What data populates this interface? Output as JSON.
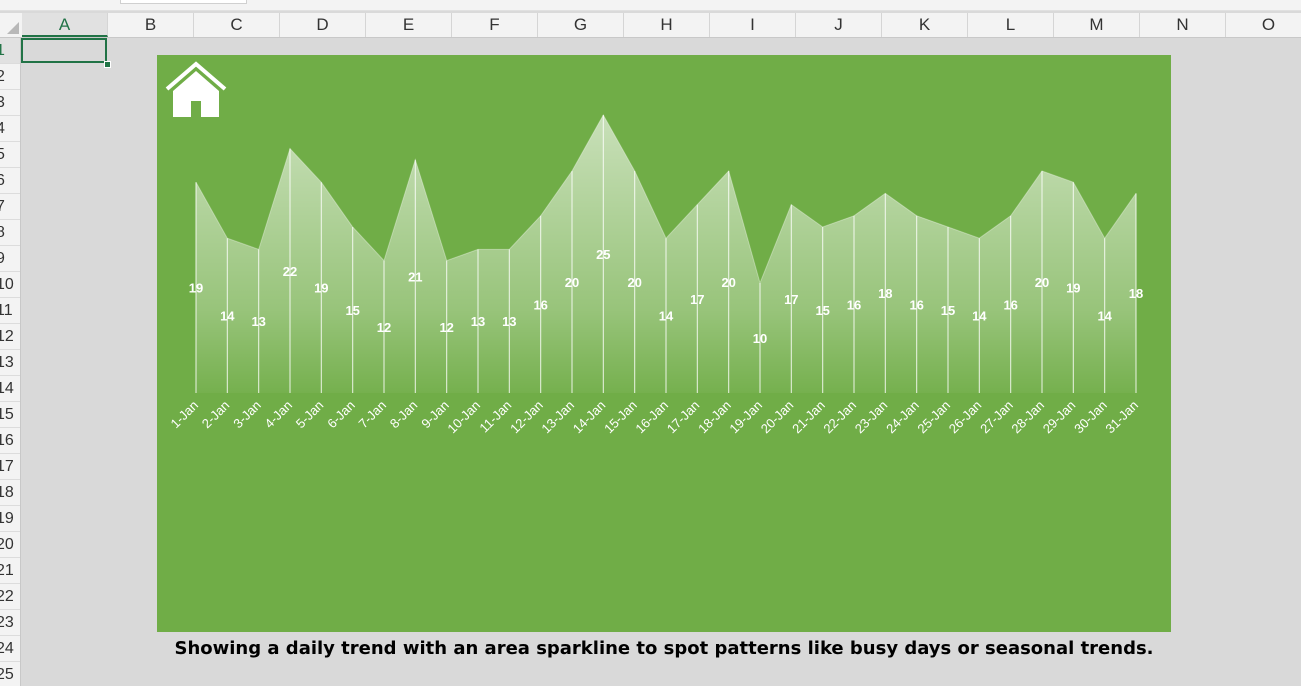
{
  "spreadsheet": {
    "columns": [
      "A",
      "B",
      "C",
      "D",
      "E",
      "F",
      "G",
      "H",
      "I",
      "J",
      "K",
      "L",
      "M",
      "N",
      "O"
    ],
    "rows": [
      "1",
      "2",
      "3",
      "4",
      "5",
      "6",
      "7",
      "8",
      "9",
      "10",
      "11",
      "12",
      "13",
      "14",
      "15",
      "16",
      "17",
      "18",
      "19",
      "20",
      "21",
      "22",
      "23",
      "24",
      "25"
    ],
    "selected_cell": "A1"
  },
  "dashboard": {
    "icon": "home-icon",
    "background_color": "#70ad47",
    "fill_color": "#ffffff",
    "caption": "Showing a daily trend with an area sparkline to spot patterns like busy days or seasonal trends."
  },
  "chart_data": {
    "type": "area",
    "categories": [
      "1-Jan",
      "2-Jan",
      "3-Jan",
      "4-Jan",
      "5-Jan",
      "6-Jan",
      "7-Jan",
      "8-Jan",
      "9-Jan",
      "10-Jan",
      "11-Jan",
      "12-Jan",
      "13-Jan",
      "14-Jan",
      "15-Jan",
      "16-Jan",
      "17-Jan",
      "18-Jan",
      "19-Jan",
      "20-Jan",
      "21-Jan",
      "22-Jan",
      "23-Jan",
      "24-Jan",
      "25-Jan",
      "26-Jan",
      "27-Jan",
      "28-Jan",
      "29-Jan",
      "30-Jan",
      "31-Jan"
    ],
    "values": [
      19,
      14,
      13,
      22,
      19,
      15,
      12,
      21,
      12,
      13,
      13,
      16,
      20,
      25,
      20,
      14,
      17,
      20,
      10,
      17,
      15,
      16,
      18,
      16,
      15,
      14,
      16,
      20,
      19,
      14,
      18
    ],
    "data_labels": true,
    "drop_lines": true,
    "gridlines": false,
    "legend": "none",
    "ylim": [
      0,
      30
    ]
  }
}
